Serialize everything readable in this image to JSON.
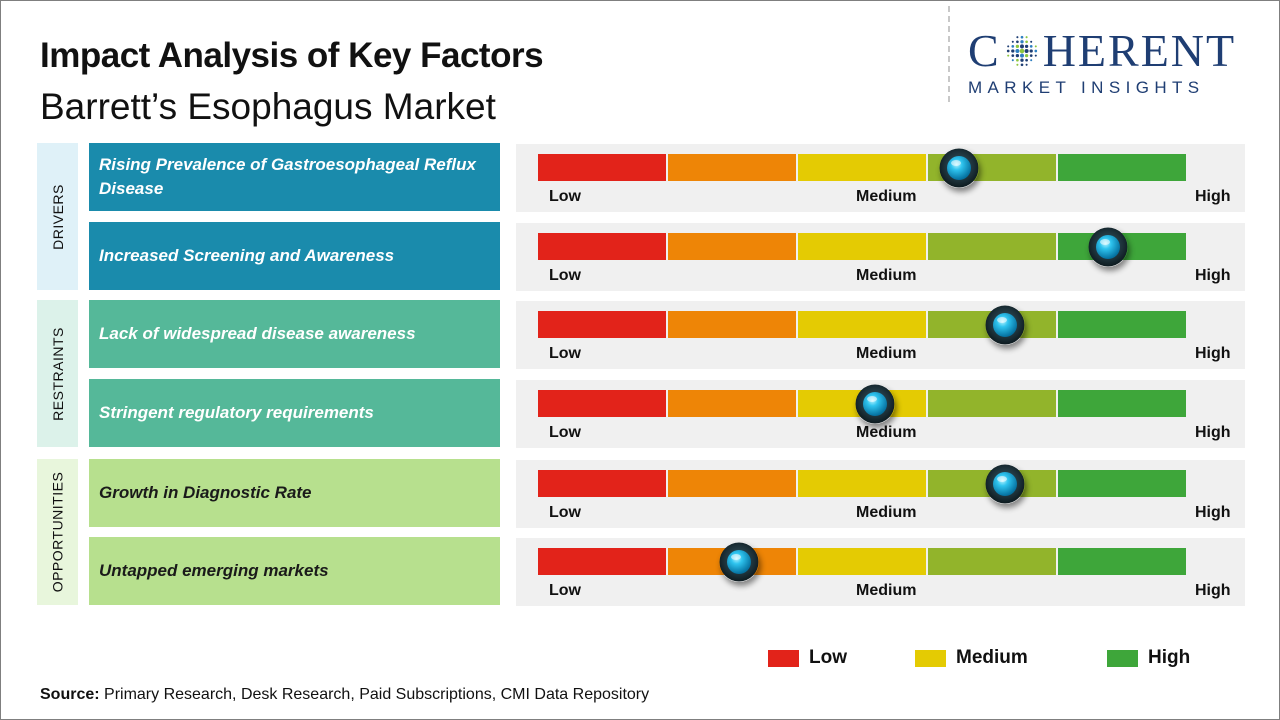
{
  "header": {
    "title": "Impact Analysis of Key Factors",
    "subtitle": "Barrett’s Esophagus Market"
  },
  "logo": {
    "main_before": "C",
    "main_after": "HERENT",
    "sub": "MARKET INSIGHTS",
    "color": "#1f3e73"
  },
  "colors": {
    "low": "#e2231a",
    "low_mid": "#ee8506",
    "medium": "#e4cb03",
    "mid_high": "#92b42b",
    "high": "#3ea63a",
    "drivers_bg": "#1a8bac",
    "drivers_side": "#dff1f8",
    "restraints_bg": "#55b899",
    "restraints_side": "#dcf2ea",
    "opportunities_bg": "#b7e08e",
    "opportunities_side": "#e8f6dc"
  },
  "chart_data": {
    "type": "gauge-bar",
    "scale_labels": [
      "Low",
      "Medium",
      "High"
    ],
    "scale": [
      0,
      100
    ],
    "categories": [
      {
        "name": "DRIVERS",
        "factors": [
          {
            "label": "Rising Prevalence of Gastroesophageal Reflux Disease",
            "value": 65
          },
          {
            "label": "Increased Screening and Awareness",
            "value": 88
          }
        ]
      },
      {
        "name": "RESTRAINTS",
        "factors": [
          {
            "label": "Lack of widespread disease awareness",
            "value": 72
          },
          {
            "label": "Stringent regulatory requirements",
            "value": 52
          }
        ]
      },
      {
        "name": "OPPORTUNITIES",
        "factors": [
          {
            "label": "Growth in Diagnostic Rate",
            "value": 72
          },
          {
            "label": "Untapped emerging markets",
            "value": 31
          }
        ]
      }
    ],
    "legend": [
      {
        "label": "Low",
        "color": "#e2231a"
      },
      {
        "label": "Medium",
        "color": "#e4cb03"
      },
      {
        "label": "High",
        "color": "#3ea63a"
      }
    ]
  },
  "footer": {
    "source_label": "Source:",
    "source_text": " Primary Research, Desk Research, Paid Subscriptions, CMI Data Repository"
  }
}
